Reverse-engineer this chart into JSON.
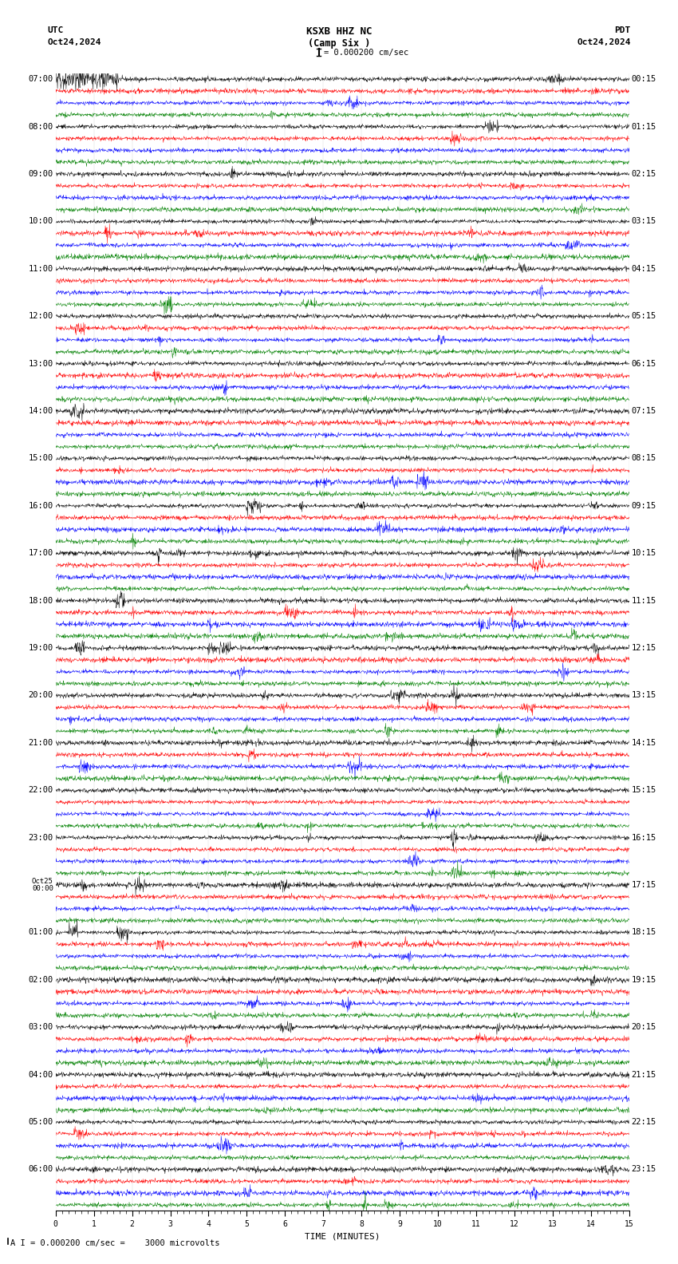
{
  "title_center": "KSXB HHZ NC",
  "title_center2": "(Camp Six )",
  "title_left": "UTC",
  "title_left2": "Oct24,2024",
  "title_right": "PDT",
  "title_right2": "Oct24,2024",
  "scale_label": "= 0.000200 cm/sec",
  "bottom_label": "A I = 0.000200 cm/sec =    3000 microvolts",
  "xlabel": "TIME (MINUTES)",
  "colors": [
    "black",
    "red",
    "blue",
    "green"
  ],
  "n_rows": 96,
  "minutes_per_row": 15,
  "background_color": "white",
  "left_labels_utc": [
    "07:00",
    "",
    "",
    "",
    "08:00",
    "",
    "",
    "",
    "09:00",
    "",
    "",
    "",
    "10:00",
    "",
    "",
    "",
    "11:00",
    "",
    "",
    "",
    "12:00",
    "",
    "",
    "",
    "13:00",
    "",
    "",
    "",
    "14:00",
    "",
    "",
    "",
    "15:00",
    "",
    "",
    "",
    "16:00",
    "",
    "",
    "",
    "17:00",
    "",
    "",
    "",
    "18:00",
    "",
    "",
    "",
    "19:00",
    "",
    "",
    "",
    "20:00",
    "",
    "",
    "",
    "21:00",
    "",
    "",
    "",
    "22:00",
    "",
    "",
    "",
    "23:00",
    "",
    "",
    "",
    "Oct25\n00:00",
    "",
    "",
    "",
    "01:00",
    "",
    "",
    "",
    "02:00",
    "",
    "",
    "",
    "03:00",
    "",
    "",
    "",
    "04:00",
    "",
    "",
    "",
    "05:00",
    "",
    "",
    "",
    "06:00",
    "",
    "",
    ""
  ],
  "right_labels_pdt": [
    "00:15",
    "",
    "",
    "",
    "01:15",
    "",
    "",
    "",
    "02:15",
    "",
    "",
    "",
    "03:15",
    "",
    "",
    "",
    "04:15",
    "",
    "",
    "",
    "05:15",
    "",
    "",
    "",
    "06:15",
    "",
    "",
    "",
    "07:15",
    "",
    "",
    "",
    "08:15",
    "",
    "",
    "",
    "09:15",
    "",
    "",
    "",
    "10:15",
    "",
    "",
    "",
    "11:15",
    "",
    "",
    "",
    "12:15",
    "",
    "",
    "",
    "13:15",
    "",
    "",
    "",
    "14:15",
    "",
    "",
    "",
    "15:15",
    "",
    "",
    "",
    "16:15",
    "",
    "",
    "",
    "17:15",
    "",
    "",
    "",
    "18:15",
    "",
    "",
    "",
    "19:15",
    "",
    "",
    "",
    "20:15",
    "",
    "",
    "",
    "21:15",
    "",
    "",
    "",
    "22:15",
    "",
    "",
    "",
    "23:15",
    "",
    "",
    ""
  ],
  "seed": 42
}
